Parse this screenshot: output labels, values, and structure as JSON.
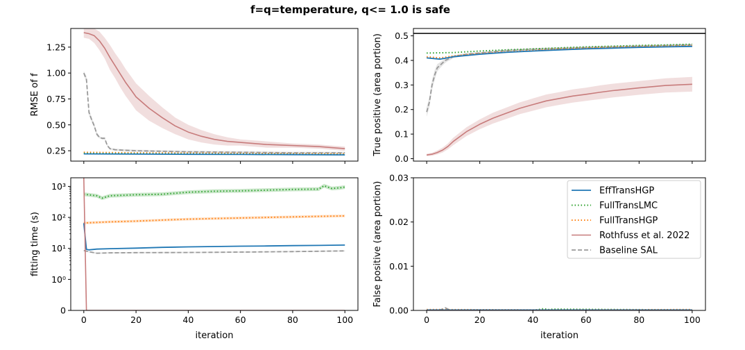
{
  "chart_data": {
    "type": "line",
    "title": "f=q=temperature, q<= 1.0 is safe",
    "colors": {
      "EffTransHGP": "#1f77b4",
      "FullTransLMC": "#2ca02c",
      "FullTransHGP": "#ff7f0e",
      "Rothfuss": "#c77b7b",
      "Baseline": "#999999",
      "safety_line": "#000000"
    },
    "legend": {
      "placement": "top-right of bottom-right subplot",
      "entries": [
        "EffTransHGP",
        "FullTransLMC",
        "FullTransHGP",
        "Rothfuss et al. 2022",
        "Baseline SAL"
      ]
    },
    "subplots": [
      {
        "id": "rmse",
        "xlabel": "",
        "ylabel": "RMSE of f",
        "xlim": [
          -5,
          105
        ],
        "ylim": [
          0.15,
          1.43
        ],
        "xticks": [
          0,
          20,
          40,
          60,
          80,
          100
        ],
        "show_xticklabels": false,
        "yticks": [
          0.25,
          0.5,
          0.75,
          1.0,
          1.25
        ],
        "yticklabels": [
          "0.25",
          "0.50",
          "0.75",
          "1.00",
          "1.25"
        ],
        "series": [
          {
            "name": "Rothfuss et al. 2022",
            "x": [
              0,
              2,
              4,
              6,
              8,
              10,
              12,
              14,
              16,
              18,
              20,
              25,
              30,
              35,
              40,
              45,
              50,
              55,
              60,
              70,
              80,
              90,
              100
            ],
            "y": [
              1.39,
              1.38,
              1.36,
              1.31,
              1.24,
              1.15,
              1.07,
              0.99,
              0.91,
              0.84,
              0.77,
              0.66,
              0.57,
              0.49,
              0.43,
              0.39,
              0.36,
              0.34,
              0.33,
              0.31,
              0.3,
              0.29,
              0.27
            ],
            "band": [
              0.05,
              0.05,
              0.07,
              0.09,
              0.1,
              0.12,
              0.12,
              0.13,
              0.13,
              0.13,
              0.13,
              0.12,
              0.1,
              0.08,
              0.07,
              0.06,
              0.05,
              0.04,
              0.03,
              0.03,
              0.02,
              0.02,
              0.02
            ]
          },
          {
            "name": "Baseline SAL",
            "x": [
              0,
              1,
              2,
              3,
              4,
              5,
              6,
              7,
              8,
              9,
              10,
              12,
              15,
              20,
              40,
              60,
              80,
              100
            ],
            "y": [
              1.0,
              0.94,
              0.62,
              0.55,
              0.49,
              0.41,
              0.38,
              0.37,
              0.37,
              0.3,
              0.27,
              0.26,
              0.255,
              0.25,
              0.24,
              0.235,
              0.23,
              0.23
            ],
            "band": [
              0.02,
              0.03,
              0.03,
              0.02,
              0.02,
              0.02,
              0.01,
              0.01,
              0.01,
              0.01,
              0.01,
              0.01,
              0.01,
              0.01,
              0.01,
              0.01,
              0.01,
              0.01
            ]
          },
          {
            "name": "FullTransHGP",
            "x": [
              0,
              20,
              40,
              60,
              80,
              100
            ],
            "y": [
              0.235,
              0.23,
              0.228,
              0.225,
              0.222,
              0.22
            ]
          },
          {
            "name": "FullTransLMC",
            "x": [
              0,
              20,
              40,
              60,
              80,
              100
            ],
            "y": [
              0.225,
              0.222,
              0.22,
              0.218,
              0.215,
              0.212
            ]
          },
          {
            "name": "EffTransHGP",
            "x": [
              0,
              20,
              40,
              60,
              80,
              100
            ],
            "y": [
              0.22,
              0.218,
              0.216,
              0.214,
              0.212,
              0.21
            ]
          }
        ]
      },
      {
        "id": "tp",
        "xlabel": "",
        "ylabel": "True positive (area portion)",
        "xlim": [
          -5,
          105
        ],
        "ylim": [
          -0.01,
          0.53
        ],
        "xticks": [
          0,
          20,
          40,
          60,
          80,
          100
        ],
        "show_xticklabels": false,
        "yticks": [
          0.0,
          0.1,
          0.2,
          0.3,
          0.4,
          0.5
        ],
        "yticklabels": [
          "0.0",
          "0.1",
          "0.2",
          "0.3",
          "0.4",
          "0.5"
        ],
        "hline": 0.51,
        "series": [
          {
            "name": "Rothfuss et al. 2022",
            "x": [
              0,
              2,
              4,
              6,
              8,
              10,
              15,
              20,
              25,
              30,
              35,
              40,
              45,
              50,
              55,
              60,
              65,
              70,
              80,
              90,
              100
            ],
            "y": [
              0.015,
              0.018,
              0.025,
              0.035,
              0.05,
              0.07,
              0.11,
              0.14,
              0.165,
              0.185,
              0.205,
              0.22,
              0.235,
              0.245,
              0.255,
              0.262,
              0.27,
              0.277,
              0.288,
              0.298,
              0.303
            ],
            "band": [
              0.005,
              0.006,
              0.008,
              0.01,
              0.012,
              0.015,
              0.018,
              0.02,
              0.022,
              0.023,
              0.024,
              0.025,
              0.026,
              0.026,
              0.027,
              0.027,
              0.028,
              0.028,
              0.028,
              0.029,
              0.03
            ]
          },
          {
            "name": "Baseline SAL",
            "x": [
              0,
              1,
              2,
              3,
              4,
              5,
              6,
              7,
              8,
              9,
              10,
              15,
              20,
              30,
              40,
              60,
              80,
              100
            ],
            "y": [
              0.19,
              0.23,
              0.3,
              0.34,
              0.37,
              0.38,
              0.39,
              0.4,
              0.405,
              0.41,
              0.415,
              0.425,
              0.43,
              0.44,
              0.445,
              0.452,
              0.458,
              0.463
            ],
            "band": [
              0.02,
              0.02,
              0.02,
              0.02,
              0.015,
              0.012,
              0.01,
              0.01,
              0.008,
              0.008,
              0.006,
              0.005,
              0.005,
              0.005,
              0.005,
              0.005,
              0.005,
              0.005
            ]
          },
          {
            "name": "FullTransLMC",
            "x": [
              0,
              10,
              20,
              30,
              40,
              50,
              60,
              70,
              80,
              90,
              100
            ],
            "y": [
              0.43,
              0.432,
              0.438,
              0.443,
              0.447,
              0.451,
              0.455,
              0.458,
              0.461,
              0.463,
              0.466
            ]
          },
          {
            "name": "FullTransHGP",
            "x": [
              0,
              5,
              10,
              20,
              30,
              40,
              50,
              60,
              70,
              80,
              90,
              100
            ],
            "y": [
              0.415,
              0.41,
              0.418,
              0.428,
              0.435,
              0.44,
              0.446,
              0.45,
              0.453,
              0.456,
              0.458,
              0.46
            ]
          },
          {
            "name": "EffTransHGP",
            "x": [
              0,
              5,
              10,
              20,
              30,
              40,
              50,
              60,
              70,
              80,
              90,
              100
            ],
            "y": [
              0.41,
              0.405,
              0.415,
              0.425,
              0.433,
              0.438,
              0.443,
              0.447,
              0.45,
              0.453,
              0.455,
              0.457
            ]
          }
        ]
      },
      {
        "id": "time",
        "xlabel": "iteration",
        "ylabel": "fitting time (s)",
        "yscale": "symlog",
        "xlim": [
          -5,
          105
        ],
        "ylim": [
          0,
          1900
        ],
        "xticks": [
          0,
          20,
          40,
          60,
          80,
          100
        ],
        "xticklabels": [
          "0",
          "20",
          "40",
          "60",
          "80",
          "100"
        ],
        "yticks": [
          0,
          1,
          10,
          100,
          1000
        ],
        "yticklabels": [
          "0",
          "10^0",
          "10^1",
          "10^2",
          "10^3"
        ],
        "series": [
          {
            "name": "FullTransLMC",
            "x": [
              0,
              5,
              7,
              10,
              20,
              30,
              40,
              50,
              60,
              70,
              80,
              90,
              92,
              95,
              98,
              100
            ],
            "y": [
              560,
              500,
              420,
              500,
              540,
              560,
              650,
              700,
              720,
              760,
              800,
              820,
              1050,
              860,
              900,
              950
            ],
            "band_ratio": 0.15
          },
          {
            "name": "FullTransHGP",
            "x": [
              0,
              10,
              20,
              30,
              40,
              50,
              60,
              70,
              80,
              90,
              100
            ],
            "y": [
              66,
              72,
              76,
              82,
              88,
              92,
              96,
              100,
              104,
              108,
              112
            ],
            "band_ratio": 0.1
          },
          {
            "name": "EffTransHGP",
            "x": [
              0,
              1,
              2,
              5,
              10,
              20,
              30,
              40,
              50,
              60,
              70,
              80,
              90,
              100
            ],
            "y": [
              65,
              9.3,
              9.0,
              9.5,
              9.8,
              10.2,
              10.8,
              11.2,
              11.5,
              11.8,
              12.0,
              12.3,
              12.5,
              12.8
            ]
          },
          {
            "name": "Baseline SAL",
            "x": [
              0,
              2,
              5,
              10,
              20,
              40,
              60,
              80,
              100
            ],
            "y": [
              8.5,
              7.8,
              7.0,
              7.2,
              7.3,
              7.4,
              7.6,
              7.9,
              8.3
            ],
            "band_ratio": 0.05
          },
          {
            "name": "Rothfuss et al. 2022",
            "x": [
              0,
              1,
              2,
              100
            ],
            "y": [
              1900,
              0,
              0,
              0
            ]
          }
        ]
      },
      {
        "id": "fp",
        "xlabel": "iteration",
        "ylabel": "False positive (area portion)",
        "xlim": [
          -5,
          105
        ],
        "ylim": [
          0.0,
          0.03
        ],
        "xticks": [
          0,
          20,
          40,
          60,
          80,
          100
        ],
        "xticklabels": [
          "0",
          "20",
          "40",
          "60",
          "80",
          "100"
        ],
        "yticks": [
          0.0,
          0.01,
          0.02,
          0.03
        ],
        "yticklabels": [
          "0.00",
          "0.01",
          "0.02",
          "0.03"
        ],
        "series": [
          {
            "name": "Baseline SAL",
            "x": [
              0,
              5,
              7,
              9,
              100
            ],
            "y": [
              0.0,
              0.0001,
              0.0006,
              0.0,
              0.0
            ]
          },
          {
            "name": "FullTransLMC",
            "x": [
              0,
              40,
              44,
              46,
              48,
              100
            ],
            "y": [
              0.0,
              0.0,
              0.0004,
              0.0002,
              0.0003,
              0.0001
            ]
          },
          {
            "name": "FullTransHGP",
            "x": [
              0,
              50,
              100
            ],
            "y": [
              0.0002,
              0.0001,
              0.0002
            ]
          },
          {
            "name": "EffTransHGP",
            "x": [
              0,
              100
            ],
            "y": [
              0.0001,
              0.0001
            ]
          },
          {
            "name": "Rothfuss et al. 2022",
            "x": [
              0,
              100
            ],
            "y": [
              0.0,
              0.0
            ]
          }
        ]
      }
    ]
  }
}
